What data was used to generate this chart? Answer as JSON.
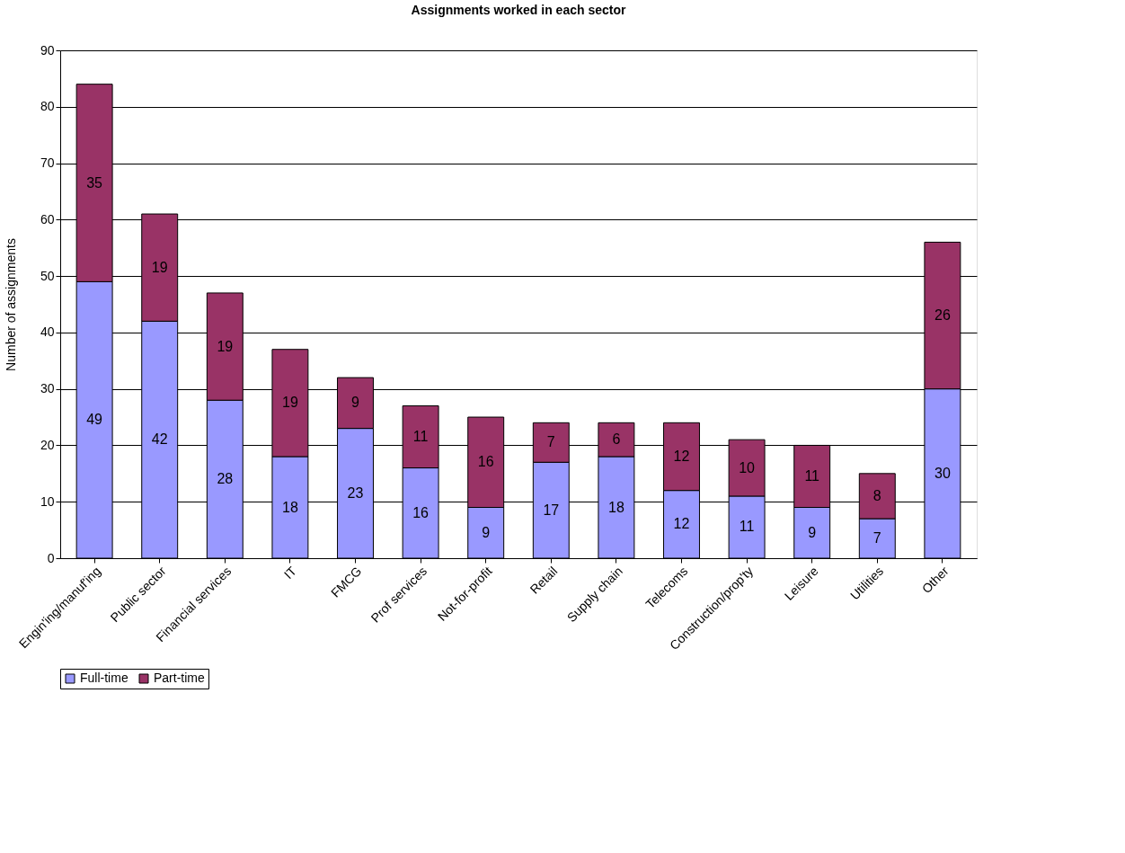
{
  "chart_data": {
    "type": "bar",
    "title": "Assignments worked in each sector",
    "ylabel": "Number of assignments",
    "categories": [
      "Engin'ing/manuf'ing",
      "Public sector",
      "Financial services",
      "IT",
      "FMCG",
      "Prof services",
      "Not-for-profit",
      "Retail",
      "Supply chain",
      "Telecoms",
      "Construction/prop'ty",
      "Leisure",
      "Utilities",
      "Other"
    ],
    "series": [
      {
        "name": "Full-time",
        "color": "#9999ff",
        "values": [
          49,
          42,
          28,
          18,
          23,
          16,
          9,
          17,
          18,
          12,
          11,
          9,
          7,
          30
        ]
      },
      {
        "name": "Part-time",
        "color": "#993366",
        "values": [
          35,
          19,
          19,
          19,
          9,
          11,
          16,
          7,
          6,
          12,
          10,
          11,
          8,
          26
        ]
      }
    ],
    "stacked": true,
    "ylim": [
      0,
      90
    ],
    "yticks": [
      0,
      10,
      20,
      30,
      40,
      50,
      60,
      70,
      80,
      90
    ],
    "grid": "y",
    "legend": "bottom",
    "data_labels": true
  }
}
